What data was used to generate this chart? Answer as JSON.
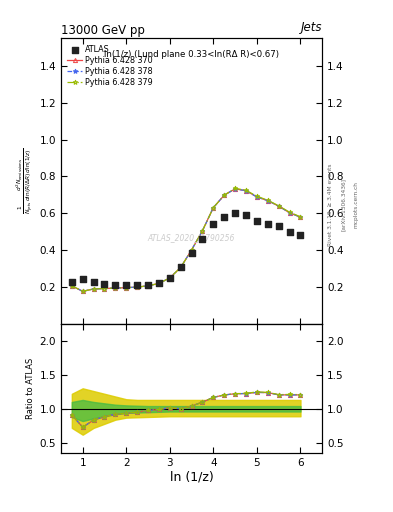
{
  "title": "13000 GeV pp",
  "title_right": "Jets",
  "subplot_title": "ln(1/z) (Lund plane 0.33<ln(RΔ R)<0.67)",
  "xlabel": "ln (1/z)",
  "ylabel_ratio": "Ratio to ATLAS",
  "watermark": "ATLAS_2020_I1790256",
  "rivet_label": "Rivet 3.1.10, ≥ 3.4M events",
  "arxiv_label": "[arXiv:1306.3436]",
  "mcplots_label": "mcplots.cern.ch",
  "xlim": [
    0.5,
    6.5
  ],
  "ylim_main": [
    0.0,
    1.55
  ],
  "ylim_ratio": [
    0.35,
    2.25
  ],
  "yticks_main": [
    0.2,
    0.4,
    0.6,
    0.8,
    1.0,
    1.2,
    1.4
  ],
  "yticks_ratio": [
    0.5,
    1.0,
    1.5,
    2.0
  ],
  "xticks": [
    1,
    2,
    3,
    4,
    5,
    6
  ],
  "atlas_x": [
    0.75,
    1.0,
    1.25,
    1.5,
    1.75,
    2.0,
    2.25,
    2.5,
    2.75,
    3.0,
    3.25,
    3.5,
    3.75,
    4.0,
    4.25,
    4.5,
    4.75,
    5.0,
    5.25,
    5.5,
    5.75,
    6.0
  ],
  "atlas_y": [
    0.225,
    0.24,
    0.225,
    0.215,
    0.21,
    0.208,
    0.208,
    0.21,
    0.22,
    0.245,
    0.305,
    0.385,
    0.46,
    0.54,
    0.58,
    0.6,
    0.59,
    0.555,
    0.54,
    0.53,
    0.5,
    0.48
  ],
  "py370_x": [
    0.75,
    1.0,
    1.25,
    1.5,
    1.75,
    2.0,
    2.25,
    2.5,
    2.75,
    3.0,
    3.25,
    3.5,
    3.75,
    4.0,
    4.25,
    4.5,
    4.75,
    5.0,
    5.25,
    5.5,
    5.75,
    6.0
  ],
  "py370_y": [
    0.205,
    0.175,
    0.188,
    0.19,
    0.193,
    0.195,
    0.198,
    0.205,
    0.218,
    0.248,
    0.305,
    0.4,
    0.505,
    0.63,
    0.698,
    0.732,
    0.722,
    0.688,
    0.668,
    0.638,
    0.602,
    0.578
  ],
  "py378_x": [
    0.75,
    1.0,
    1.25,
    1.5,
    1.75,
    2.0,
    2.25,
    2.5,
    2.75,
    3.0,
    3.25,
    3.5,
    3.75,
    4.0,
    4.25,
    4.5,
    4.75,
    5.0,
    5.25,
    5.5,
    5.75,
    6.0
  ],
  "py378_y": [
    0.205,
    0.175,
    0.188,
    0.19,
    0.193,
    0.195,
    0.198,
    0.205,
    0.218,
    0.248,
    0.305,
    0.4,
    0.505,
    0.63,
    0.698,
    0.732,
    0.722,
    0.688,
    0.668,
    0.638,
    0.602,
    0.578
  ],
  "py379_x": [
    0.75,
    1.0,
    1.25,
    1.5,
    1.75,
    2.0,
    2.25,
    2.5,
    2.75,
    3.0,
    3.25,
    3.5,
    3.75,
    4.0,
    4.25,
    4.5,
    4.75,
    5.0,
    5.25,
    5.5,
    5.75,
    6.0
  ],
  "py379_y": [
    0.205,
    0.175,
    0.188,
    0.19,
    0.193,
    0.195,
    0.198,
    0.205,
    0.218,
    0.248,
    0.305,
    0.4,
    0.505,
    0.63,
    0.698,
    0.735,
    0.724,
    0.692,
    0.67,
    0.64,
    0.605,
    0.58
  ],
  "ratio_py370_y": [
    0.91,
    0.73,
    0.835,
    0.885,
    0.92,
    0.935,
    0.95,
    0.975,
    0.99,
    1.015,
    1.0,
    1.04,
    1.098,
    1.167,
    1.203,
    1.22,
    1.224,
    1.24,
    1.237,
    1.204,
    1.204,
    1.204
  ],
  "ratio_py378_y": [
    0.91,
    0.73,
    0.835,
    0.885,
    0.92,
    0.935,
    0.95,
    0.975,
    0.99,
    1.015,
    1.0,
    1.04,
    1.098,
    1.167,
    1.203,
    1.22,
    1.224,
    1.24,
    1.237,
    1.204,
    1.204,
    1.204
  ],
  "ratio_py379_y": [
    0.91,
    0.73,
    0.835,
    0.885,
    0.92,
    0.935,
    0.95,
    0.975,
    0.99,
    1.015,
    1.0,
    1.04,
    1.098,
    1.167,
    1.203,
    1.222,
    1.226,
    1.248,
    1.24,
    1.208,
    1.21,
    1.208
  ],
  "band_yellow_lo": [
    0.72,
    0.62,
    0.72,
    0.78,
    0.84,
    0.87,
    0.875,
    0.88,
    0.885,
    0.89,
    0.89,
    0.89,
    0.89,
    0.89,
    0.89,
    0.89,
    0.89,
    0.89,
    0.89,
    0.89,
    0.89,
    0.89
  ],
  "band_yellow_hi": [
    1.22,
    1.3,
    1.26,
    1.22,
    1.18,
    1.14,
    1.13,
    1.13,
    1.13,
    1.13,
    1.13,
    1.13,
    1.13,
    1.13,
    1.13,
    1.13,
    1.13,
    1.13,
    1.13,
    1.13,
    1.13,
    1.13
  ],
  "band_green_lo": [
    0.88,
    0.82,
    0.86,
    0.89,
    0.92,
    0.94,
    0.945,
    0.95,
    0.955,
    0.96,
    0.96,
    0.96,
    0.96,
    0.96,
    0.96,
    0.96,
    0.96,
    0.96,
    0.96,
    0.96,
    0.96,
    0.96
  ],
  "band_green_hi": [
    1.1,
    1.13,
    1.1,
    1.08,
    1.06,
    1.05,
    1.045,
    1.04,
    1.04,
    1.04,
    1.04,
    1.04,
    1.04,
    1.04,
    1.04,
    1.04,
    1.04,
    1.04,
    1.04,
    1.04,
    1.04,
    1.04
  ],
  "color_atlas": "#222222",
  "color_py370": "#ee4444",
  "color_py378": "#4466ee",
  "color_py379": "#99bb00",
  "color_green_band": "#44bb44",
  "color_yellow_band": "#ddcc00",
  "legend_labels": [
    "ATLAS",
    "Pythia 6.428 370",
    "Pythia 6.428 378",
    "Pythia 6.428 379"
  ],
  "bg_color": "#ffffff"
}
